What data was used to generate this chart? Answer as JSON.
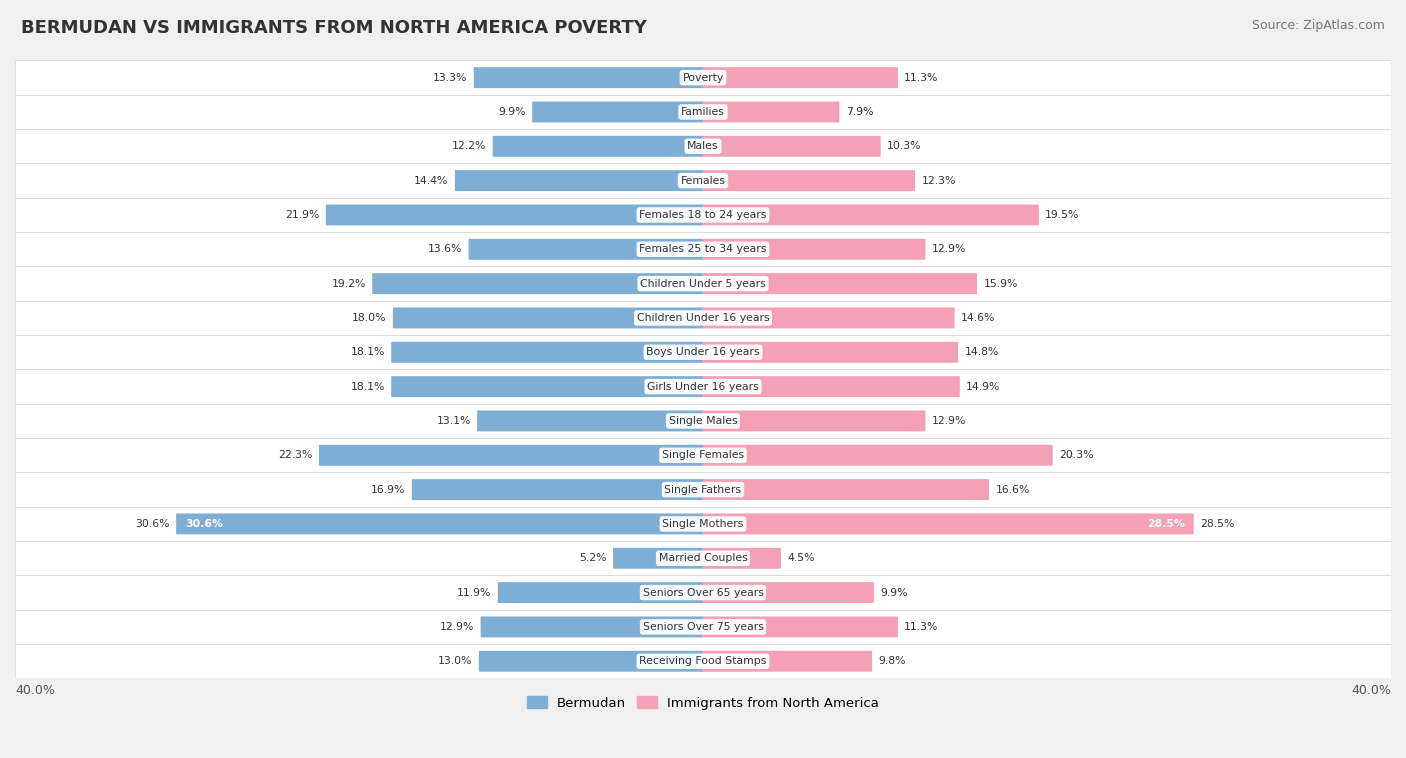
{
  "title": "BERMUDAN VS IMMIGRANTS FROM NORTH AMERICA POVERTY",
  "source": "Source: ZipAtlas.com",
  "categories": [
    "Poverty",
    "Families",
    "Males",
    "Females",
    "Females 18 to 24 years",
    "Females 25 to 34 years",
    "Children Under 5 years",
    "Children Under 16 years",
    "Boys Under 16 years",
    "Girls Under 16 years",
    "Single Males",
    "Single Females",
    "Single Fathers",
    "Single Mothers",
    "Married Couples",
    "Seniors Over 65 years",
    "Seniors Over 75 years",
    "Receiving Food Stamps"
  ],
  "bermudan": [
    13.3,
    9.9,
    12.2,
    14.4,
    21.9,
    13.6,
    19.2,
    18.0,
    18.1,
    18.1,
    13.1,
    22.3,
    16.9,
    30.6,
    5.2,
    11.9,
    12.9,
    13.0
  ],
  "immigrants": [
    11.3,
    7.9,
    10.3,
    12.3,
    19.5,
    12.9,
    15.9,
    14.6,
    14.8,
    14.9,
    12.9,
    20.3,
    16.6,
    28.5,
    4.5,
    9.9,
    11.3,
    9.8
  ],
  "blue_color": "#7eaed4",
  "pink_color": "#f4a0b5",
  "bg_color": "#f0f0f0",
  "row_bg_color": "#ffffff",
  "row_alt_bg_color": "#e8e8e8",
  "axis_max": 40.0,
  "legend_blue": "Bermudan",
  "legend_pink": "Immigrants from North America"
}
